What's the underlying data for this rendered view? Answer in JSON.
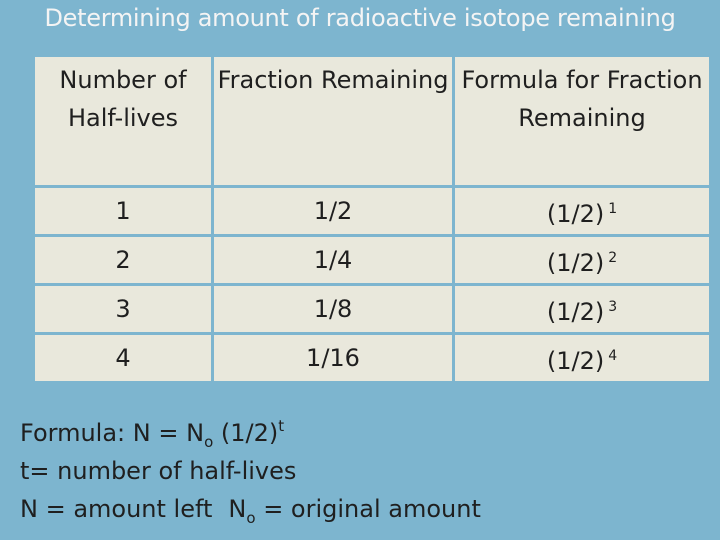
{
  "title": "Determining amount of radioactive isotope remaining",
  "table": {
    "headers": [
      "Number of Half-lives",
      "Fraction Remaining",
      "Formula for Fraction Remaining"
    ],
    "rows": [
      {
        "n": "1",
        "fraction": "1/2",
        "base": "(1/2)",
        "exp": "1"
      },
      {
        "n": "2",
        "fraction": "1/4",
        "base": "(1/2)",
        "exp": "2"
      },
      {
        "n": "3",
        "fraction": "1/8",
        "base": "(1/2)",
        "exp": "3"
      },
      {
        "n": "4",
        "fraction": "1/16",
        "base": "(1/2)",
        "exp": "4"
      }
    ]
  },
  "notes": {
    "formula_label": "Formula:",
    "formula_lhs": "N = N",
    "formula_sub": "o",
    "formula_base": " (1/2)",
    "formula_exp": "t",
    "line2": "t= number of half-lives",
    "line3_a": "N = amount left",
    "line3_b_start": "N",
    "line3_b_sub": "o",
    "line3_b_end": " = original amount"
  }
}
